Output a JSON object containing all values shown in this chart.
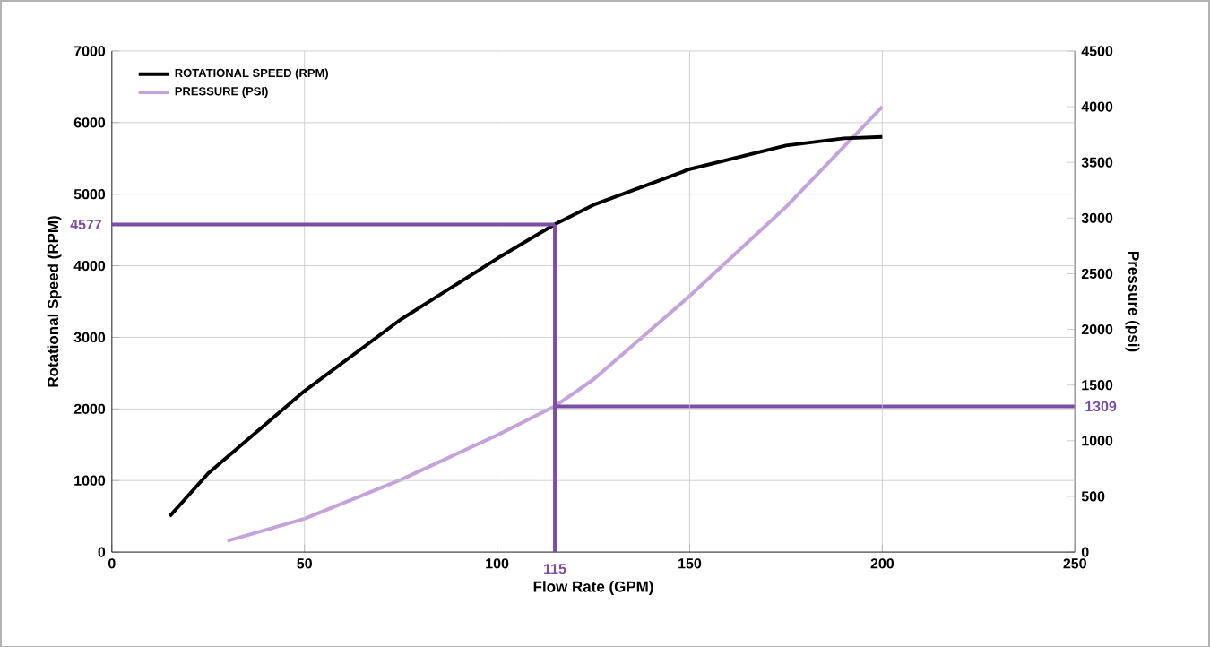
{
  "chart_data": {
    "type": "line",
    "xlabel": "Flow Rate (GPM)",
    "ylabel": "Rotational Speed (RPM)",
    "y2label": "Pressure (psi)",
    "series": [
      {
        "name": "ROTATIONAL SPEED (RPM)",
        "color": "#000000",
        "x": [
          15,
          25,
          50,
          75,
          100,
          115,
          125,
          150,
          175,
          190,
          200
        ],
        "values": [
          500,
          1100,
          2250,
          3250,
          4100,
          4580,
          4850,
          5350,
          5680,
          5780,
          5800
        ]
      },
      {
        "name": "PRESSURE (PSI)",
        "color": "#c3a3d9",
        "axis": "y2",
        "x": [
          30,
          50,
          75,
          100,
          115,
          125,
          150,
          175,
          200
        ],
        "values": [
          100,
          300,
          650,
          1050,
          1310,
          1550,
          2300,
          3100,
          4000
        ]
      }
    ],
    "xlim": [
      0,
      250
    ],
    "xticks": [
      0,
      50,
      100,
      150,
      200,
      250
    ],
    "ylim": [
      0,
      7000
    ],
    "yticks": [
      0,
      1000,
      2000,
      3000,
      4000,
      5000,
      6000,
      7000
    ],
    "y2lim": [
      0,
      4500
    ],
    "y2ticks": [
      0,
      500,
      1000,
      1500,
      2000,
      2500,
      3000,
      3500,
      4000,
      4500
    ],
    "ref_lines": [
      {
        "axis": "y",
        "value": 4577,
        "label": "4577",
        "color": "#7b4fa3"
      },
      {
        "axis": "x",
        "value": 115,
        "label": "115",
        "color": "#7b4fa3"
      },
      {
        "axis": "y2",
        "value": 1309,
        "label": "1309",
        "color": "#7b4fa3"
      }
    ],
    "grid": true,
    "legend": "top left",
    "marker": "none",
    "line_style": "solid"
  }
}
